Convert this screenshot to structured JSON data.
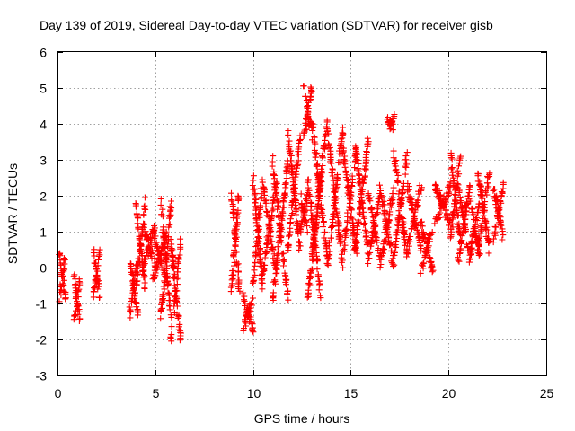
{
  "chart_data": {
    "type": "scatter",
    "title": "Day 139 of 2019, Sidereal Day-to-day VTEC variation (SDTVAR) for receiver gisb",
    "xlabel": "GPS time / hours",
    "ylabel": "SDTVAR / TECUs",
    "xlim": [
      0,
      25
    ],
    "ylim": [
      -3,
      6
    ],
    "x_ticks": [
      "0",
      "5",
      "10",
      "15",
      "20",
      "25"
    ],
    "y_ticks": [
      "-3",
      "-2",
      "-1",
      "0",
      "1",
      "2",
      "3",
      "4",
      "5",
      "6"
    ],
    "grid": true,
    "marker": "+",
    "color": "#ff0000",
    "legend": "none",
    "segments": [
      {
        "x": [
          0.1,
          0.4
        ],
        "y": [
          -0.9,
          0.4
        ]
      },
      {
        "x": [
          0.85,
          1.15
        ],
        "y": [
          -1.5,
          -0.3
        ]
      },
      {
        "x": [
          1.85,
          2.15
        ],
        "y": [
          -0.8,
          0.45
        ]
      },
      {
        "x": [
          3.7,
          4.1
        ],
        "y": [
          -1.3,
          0.2
        ]
      },
      {
        "x": [
          4.0,
          4.5
        ],
        "y": [
          -0.6,
          1.85
        ]
      },
      {
        "x": [
          4.4,
          5.0
        ],
        "y": [
          0.0,
          1.2
        ]
      },
      {
        "x": [
          4.9,
          5.6
        ],
        "y": [
          -0.3,
          0.9
        ]
      },
      {
        "x": [
          5.3,
          5.8
        ],
        "y": [
          -1.4,
          1.8
        ]
      },
      {
        "x": [
          5.8,
          6.3
        ],
        "y": [
          -2.05,
          0.75
        ]
      },
      {
        "x": [
          8.9,
          9.3
        ],
        "y": [
          -0.6,
          2.2
        ]
      },
      {
        "x": [
          9.5,
          10.0
        ],
        "y": [
          -1.7,
          -0.8
        ]
      },
      {
        "x": [
          10.0,
          10.5
        ],
        "y": [
          -0.5,
          2.5
        ]
      },
      {
        "x": [
          10.5,
          11.2
        ],
        "y": [
          -0.2,
          2.4
        ]
      },
      {
        "x": [
          11.0,
          11.8
        ],
        "y": [
          -0.9,
          3.0
        ]
      },
      {
        "x": [
          11.8,
          12.4
        ],
        "y": [
          0.5,
          3.7
        ]
      },
      {
        "x": [
          12.4,
          12.8
        ],
        "y": [
          1.0,
          2.0
        ]
      },
      {
        "x": [
          12.6,
          13.0
        ],
        "y": [
          3.6,
          5.0
        ]
      },
      {
        "x": [
          12.8,
          13.5
        ],
        "y": [
          -0.9,
          2.5
        ]
      },
      {
        "x": [
          13.0,
          13.8
        ],
        "y": [
          0.3,
          4.1
        ]
      },
      {
        "x": [
          13.8,
          14.6
        ],
        "y": [
          0.0,
          3.9
        ]
      },
      {
        "x": [
          14.6,
          15.3
        ],
        "y": [
          0.4,
          3.3
        ]
      },
      {
        "x": [
          15.2,
          15.9
        ],
        "y": [
          0.4,
          3.5
        ]
      },
      {
        "x": [
          15.9,
          16.5
        ],
        "y": [
          0.2,
          2.1
        ]
      },
      {
        "x": [
          16.5,
          17.2
        ],
        "y": [
          0.0,
          2.2
        ]
      },
      {
        "x": [
          16.9,
          17.2
        ],
        "y": [
          3.9,
          4.15
        ]
      },
      {
        "x": [
          17.2,
          17.9
        ],
        "y": [
          0.3,
          3.2
        ]
      },
      {
        "x": [
          17.9,
          18.6
        ],
        "y": [
          0.5,
          2.3
        ]
      },
      {
        "x": [
          18.6,
          19.2
        ],
        "y": [
          -0.1,
          1.2
        ]
      },
      {
        "x": [
          19.3,
          20.1
        ],
        "y": [
          1.2,
          2.3
        ]
      },
      {
        "x": [
          20.1,
          20.6
        ],
        "y": [
          0.8,
          3.15
        ]
      },
      {
        "x": [
          20.5,
          21.1
        ],
        "y": [
          0.2,
          2.3
        ]
      },
      {
        "x": [
          21.1,
          21.6
        ],
        "y": [
          0.3,
          2.0
        ]
      },
      {
        "x": [
          21.5,
          22.1
        ],
        "y": [
          0.5,
          2.7
        ]
      },
      {
        "x": [
          22.3,
          22.8
        ],
        "y": [
          0.8,
          2.3
        ]
      }
    ]
  }
}
